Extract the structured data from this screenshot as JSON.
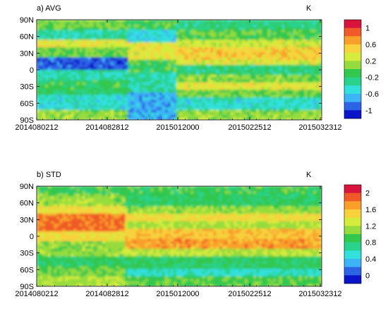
{
  "chart_data": [
    {
      "type": "heatmap",
      "panel_label": "a) AVG",
      "unit_label": "K",
      "x_ticks": [
        "2014080212",
        "2014082812",
        "2015012000",
        "2015022512",
        "2015032312"
      ],
      "y_ticks": [
        "90N",
        "60N",
        "30N",
        "0",
        "30S",
        "60S",
        "90S"
      ],
      "y_values": [
        90,
        60,
        30,
        0,
        -30,
        -60,
        -90
      ],
      "colorbar": {
        "ticks": [
          "1",
          "0.6",
          "0.2",
          "-0.2",
          "-0.6",
          "-1"
        ],
        "colors": [
          "#d8143c",
          "#f05a28",
          "#f9a02a",
          "#f7d23c",
          "#d6ec3c",
          "#96dc3c",
          "#32c850",
          "#2ad38c",
          "#32e0dc",
          "#3cb4f5",
          "#2d64e6",
          "#0a14c8"
        ]
      },
      "features": {
        "regime_change_at": "2015012000",
        "notes": [
          "strong negative band near 10N before 2015012000",
          "positive band near 30N after 2015012000"
        ]
      }
    },
    {
      "type": "heatmap",
      "panel_label": "b) STD",
      "unit_label": "K",
      "x_ticks": [
        "2014080212",
        "2014082812",
        "2015012000",
        "2015022512",
        "2015032312"
      ],
      "y_ticks": [
        "90N",
        "60N",
        "30N",
        "0",
        "30S",
        "60S",
        "90S"
      ],
      "y_values": [
        90,
        60,
        30,
        0,
        -30,
        -60,
        -90
      ],
      "colorbar": {
        "ticks": [
          "2",
          "1.6",
          "1.2",
          "0.8",
          "0.4",
          "0"
        ],
        "colors": [
          "#d8143c",
          "#f05a28",
          "#f9a02a",
          "#f7d23c",
          "#d6ec3c",
          "#96dc3c",
          "#32c850",
          "#2ad38c",
          "#32e0dc",
          "#3cb4f5",
          "#2d64e6",
          "#0a14c8"
        ]
      },
      "features": {
        "notes": [
          "high std 10N-40N before regime change",
          "high std 0-20S after regime change"
        ]
      }
    }
  ]
}
